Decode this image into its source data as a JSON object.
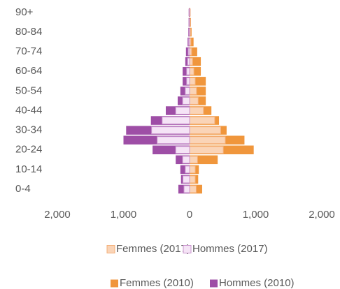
{
  "chart_data": {
    "type": "pyramid",
    "categories": [
      "0-4",
      null,
      "10-14",
      null,
      "20-24",
      null,
      "30-34",
      null,
      "40-44",
      null,
      "50-54",
      null,
      "60-64",
      null,
      "70-74",
      null,
      "80-84",
      null,
      "90+"
    ],
    "series": [
      {
        "name": "Femmes (2017)",
        "color": "#fad4b7",
        "edgecolor": "#f4b07a",
        "values": [
          100,
          85,
          85,
          120,
          510,
          540,
          470,
          380,
          210,
          130,
          105,
          85,
          65,
          45,
          30,
          20,
          15,
          10,
          10
        ]
      },
      {
        "name": "Hommes (2017)",
        "color": "#f5e4f6",
        "edgecolor": "#c993cd",
        "values": [
          -85,
          -100,
          -65,
          -105,
          -210,
          -490,
          -575,
          -415,
          -210,
          -105,
          -65,
          -45,
          -45,
          -30,
          -20,
          -15,
          -10,
          -8,
          -10
        ]
      },
      {
        "name": "Femmes (2010)",
        "color": "#f0963c",
        "values": [
          190,
          130,
          140,
          425,
          970,
          830,
          560,
          445,
          330,
          245,
          245,
          245,
          170,
          170,
          115,
          60,
          30,
          20,
          10
        ]
      },
      {
        "name": "Hommes (2010)",
        "color": "#9e4ea6",
        "values": [
          -170,
          -130,
          -140,
          -210,
          -560,
          -1000,
          -960,
          -585,
          -360,
          -180,
          -140,
          -105,
          -105,
          -65,
          -55,
          -30,
          -20,
          -15,
          -10
        ]
      }
    ],
    "xlim": [
      -2000,
      2000
    ],
    "xticks": [
      {
        "value": -2000,
        "label": "2,000"
      },
      {
        "value": -1000,
        "label": "1,000"
      },
      0,
      {
        "value": 1000,
        "label": "1,000"
      },
      {
        "value": 2000,
        "label": "2,000"
      }
    ]
  }
}
